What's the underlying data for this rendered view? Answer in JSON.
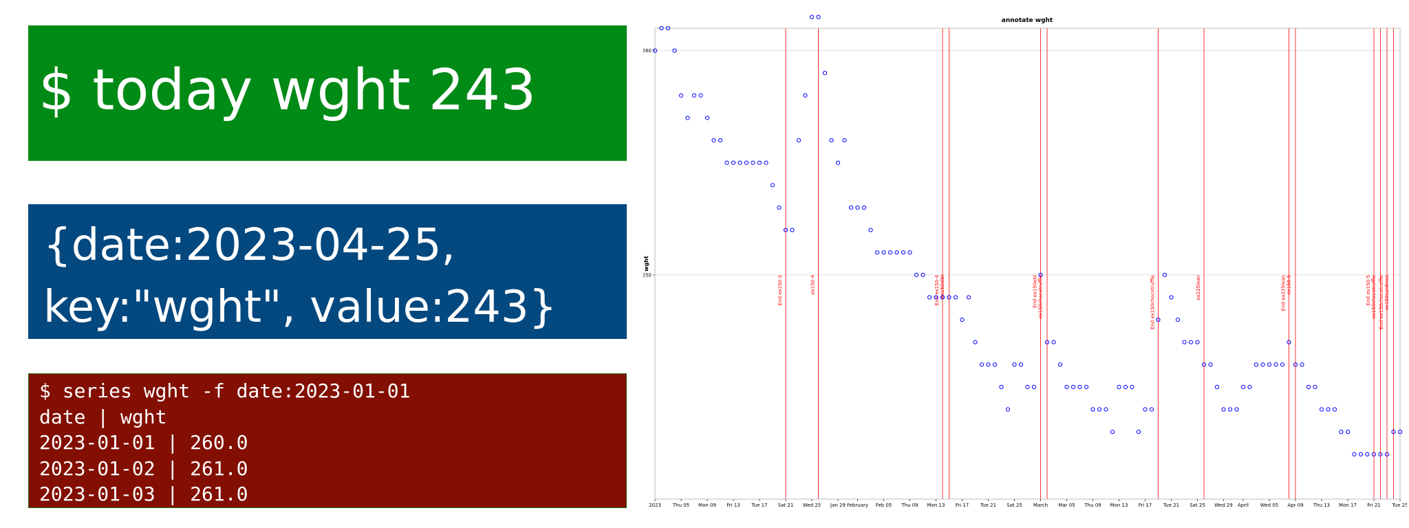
{
  "today_panel": {
    "command": "$ today wght 243",
    "bg": "#008a16"
  },
  "json_panel": {
    "line1": "{date:2023-04-25,",
    "line2": "key:\"wght\", value:243}",
    "bg": "#03487f"
  },
  "series_panel": {
    "lines": [
      "$ series wght -f date:2023-01-01",
      "date | wght",
      "2023-01-01 | 260.0",
      "2023-01-02 | 261.0",
      "2023-01-03 | 261.0"
    ],
    "bg": "#820f02"
  },
  "chart_data": {
    "type": "scatter",
    "title": "annotate wght",
    "ylabel": "wght",
    "xlabel": "",
    "x_start": "2023-01-01",
    "x_end": "2023-04-25",
    "ylim": [
      240,
      261
    ],
    "yticks": [
      250,
      260
    ],
    "grid": true,
    "point_color": "#0000ff",
    "annotation_color": "#ff0000",
    "xticks": [
      {
        "date": "2023-01-01",
        "label": "2023"
      },
      {
        "date": "2023-01-05",
        "label": "Thu 05"
      },
      {
        "date": "2023-01-09",
        "label": "Mon 09"
      },
      {
        "date": "2023-01-13",
        "label": "Fri 13"
      },
      {
        "date": "2023-01-17",
        "label": "Tue 17"
      },
      {
        "date": "2023-01-21",
        "label": "Sat 21"
      },
      {
        "date": "2023-01-25",
        "label": "Wed 25"
      },
      {
        "date": "2023-01-29",
        "label": "Jan 29"
      },
      {
        "date": "2023-02-01",
        "label": "February"
      },
      {
        "date": "2023-02-05",
        "label": "Feb 05"
      },
      {
        "date": "2023-02-09",
        "label": "Thu 09"
      },
      {
        "date": "2023-02-13",
        "label": "Mon 13"
      },
      {
        "date": "2023-02-17",
        "label": "Fri 17"
      },
      {
        "date": "2023-02-21",
        "label": "Tue 21"
      },
      {
        "date": "2023-02-25",
        "label": "Sat 25"
      },
      {
        "date": "2023-03-01",
        "label": "March"
      },
      {
        "date": "2023-03-05",
        "label": "Mar 05"
      },
      {
        "date": "2023-03-09",
        "label": "Thu 09"
      },
      {
        "date": "2023-03-13",
        "label": "Mon 13"
      },
      {
        "date": "2023-03-17",
        "label": "Fri 17"
      },
      {
        "date": "2023-03-21",
        "label": "Tue 21"
      },
      {
        "date": "2023-03-25",
        "label": "Sat 25"
      },
      {
        "date": "2023-03-29",
        "label": "Wed 29"
      },
      {
        "date": "2023-04-01",
        "label": "April"
      },
      {
        "date": "2023-04-05",
        "label": "Wed 05"
      },
      {
        "date": "2023-04-09",
        "label": "Apr 09"
      },
      {
        "date": "2023-04-13",
        "label": "Thu 13"
      },
      {
        "date": "2023-04-17",
        "label": "Mon 17"
      },
      {
        "date": "2023-04-21",
        "label": "Fri 21"
      },
      {
        "date": "2023-04-25",
        "label": "Tue 25"
      }
    ],
    "annotations": [
      {
        "date": "2023-01-21",
        "labels": [
          "End ex150-3"
        ]
      },
      {
        "date": "2023-01-26",
        "labels": [
          "ex150-4"
        ]
      },
      {
        "date": "2023-02-14",
        "labels": [
          "End ex150-4",
          "ex150elbl"
        ]
      },
      {
        "date": "2023-02-15",
        "labels": []
      },
      {
        "date": "2023-03-01",
        "labels": [
          "End ex150ebl",
          "ex150chocotruffle"
        ]
      },
      {
        "date": "2023-03-02",
        "labels": []
      },
      {
        "date": "2023-03-19",
        "labels": [
          "End ex150chocotruffle"
        ]
      },
      {
        "date": "2023-03-26",
        "labels": [
          "ex225lean"
        ]
      },
      {
        "date": "2023-04-08",
        "labels": [
          "End ex225lean",
          "ex150-5"
        ]
      },
      {
        "date": "2023-04-09",
        "labels": []
      },
      {
        "date": "2023-04-21",
        "labels": [
          "End ex150-5",
          "ex150chocotruffle"
        ]
      },
      {
        "date": "2023-04-22",
        "labels": []
      },
      {
        "date": "2023-04-23",
        "labels": [
          "End ex150chocotruffle",
          "ex150sardines"
        ]
      },
      {
        "date": "2023-04-24",
        "labels": []
      }
    ],
    "series": [
      {
        "name": "wght",
        "points": [
          [
            "2023-01-01",
            260
          ],
          [
            "2023-01-02",
            261
          ],
          [
            "2023-01-03",
            261
          ],
          [
            "2023-01-04",
            260
          ],
          [
            "2023-01-05",
            258
          ],
          [
            "2023-01-06",
            257
          ],
          [
            "2023-01-07",
            258
          ],
          [
            "2023-01-08",
            258
          ],
          [
            "2023-01-09",
            257
          ],
          [
            "2023-01-10",
            256
          ],
          [
            "2023-01-11",
            256
          ],
          [
            "2023-01-12",
            255
          ],
          [
            "2023-01-13",
            255
          ],
          [
            "2023-01-14",
            255
          ],
          [
            "2023-01-15",
            255
          ],
          [
            "2023-01-16",
            255
          ],
          [
            "2023-01-17",
            255
          ],
          [
            "2023-01-18",
            255
          ],
          [
            "2023-01-19",
            254
          ],
          [
            "2023-01-20",
            253
          ],
          [
            "2023-01-21",
            252
          ],
          [
            "2023-01-22",
            252
          ],
          [
            "2023-01-23",
            256
          ],
          [
            "2023-01-24",
            258
          ],
          [
            "2023-01-25",
            261.5
          ],
          [
            "2023-01-26",
            261.5
          ],
          [
            "2023-01-27",
            259
          ],
          [
            "2023-01-28",
            256
          ],
          [
            "2023-01-29",
            255
          ],
          [
            "2023-01-30",
            256
          ],
          [
            "2023-01-31",
            253
          ],
          [
            "2023-02-01",
            253
          ],
          [
            "2023-02-02",
            253
          ],
          [
            "2023-02-03",
            252
          ],
          [
            "2023-02-04",
            251
          ],
          [
            "2023-02-05",
            251
          ],
          [
            "2023-02-06",
            251
          ],
          [
            "2023-02-07",
            251
          ],
          [
            "2023-02-08",
            251
          ],
          [
            "2023-02-09",
            251
          ],
          [
            "2023-02-10",
            250
          ],
          [
            "2023-02-11",
            250
          ],
          [
            "2023-02-12",
            249
          ],
          [
            "2023-02-13",
            249
          ],
          [
            "2023-02-14",
            249
          ],
          [
            "2023-02-15",
            249
          ],
          [
            "2023-02-16",
            249
          ],
          [
            "2023-02-17",
            248
          ],
          [
            "2023-02-18",
            249
          ],
          [
            "2023-02-19",
            247
          ],
          [
            "2023-02-20",
            246
          ],
          [
            "2023-02-21",
            246
          ],
          [
            "2023-02-22",
            246
          ],
          [
            "2023-02-23",
            245
          ],
          [
            "2023-02-24",
            244
          ],
          [
            "2023-02-25",
            246
          ],
          [
            "2023-02-26",
            246
          ],
          [
            "2023-02-27",
            245
          ],
          [
            "2023-02-28",
            245
          ],
          [
            "2023-03-01",
            250
          ],
          [
            "2023-03-02",
            247
          ],
          [
            "2023-03-03",
            247
          ],
          [
            "2023-03-04",
            246
          ],
          [
            "2023-03-05",
            245
          ],
          [
            "2023-03-06",
            245
          ],
          [
            "2023-03-07",
            245
          ],
          [
            "2023-03-08",
            245
          ],
          [
            "2023-03-09",
            244
          ],
          [
            "2023-03-10",
            244
          ],
          [
            "2023-03-11",
            244
          ],
          [
            "2023-03-12",
            243
          ],
          [
            "2023-03-13",
            245
          ],
          [
            "2023-03-14",
            245
          ],
          [
            "2023-03-15",
            245
          ],
          [
            "2023-03-16",
            243
          ],
          [
            "2023-03-17",
            244
          ],
          [
            "2023-03-18",
            244
          ],
          [
            "2023-03-19",
            248
          ],
          [
            "2023-03-20",
            250
          ],
          [
            "2023-03-21",
            249
          ],
          [
            "2023-03-22",
            248
          ],
          [
            "2023-03-23",
            247
          ],
          [
            "2023-03-24",
            247
          ],
          [
            "2023-03-25",
            247
          ],
          [
            "2023-03-26",
            246
          ],
          [
            "2023-03-27",
            246
          ],
          [
            "2023-03-28",
            245
          ],
          [
            "2023-03-29",
            244
          ],
          [
            "2023-03-30",
            244
          ],
          [
            "2023-03-31",
            244
          ],
          [
            "2023-04-01",
            245
          ],
          [
            "2023-04-02",
            245
          ],
          [
            "2023-04-03",
            246
          ],
          [
            "2023-04-04",
            246
          ],
          [
            "2023-04-05",
            246
          ],
          [
            "2023-04-06",
            246
          ],
          [
            "2023-04-07",
            246
          ],
          [
            "2023-04-08",
            247
          ],
          [
            "2023-04-09",
            246
          ],
          [
            "2023-04-10",
            246
          ],
          [
            "2023-04-11",
            245
          ],
          [
            "2023-04-12",
            245
          ],
          [
            "2023-04-13",
            244
          ],
          [
            "2023-04-14",
            244
          ],
          [
            "2023-04-15",
            244
          ],
          [
            "2023-04-16",
            243
          ],
          [
            "2023-04-17",
            243
          ],
          [
            "2023-04-18",
            242
          ],
          [
            "2023-04-19",
            242
          ],
          [
            "2023-04-20",
            242
          ],
          [
            "2023-04-21",
            242
          ],
          [
            "2023-04-22",
            242
          ],
          [
            "2023-04-23",
            242
          ],
          [
            "2023-04-24",
            243
          ],
          [
            "2023-04-25",
            243
          ]
        ]
      }
    ]
  }
}
